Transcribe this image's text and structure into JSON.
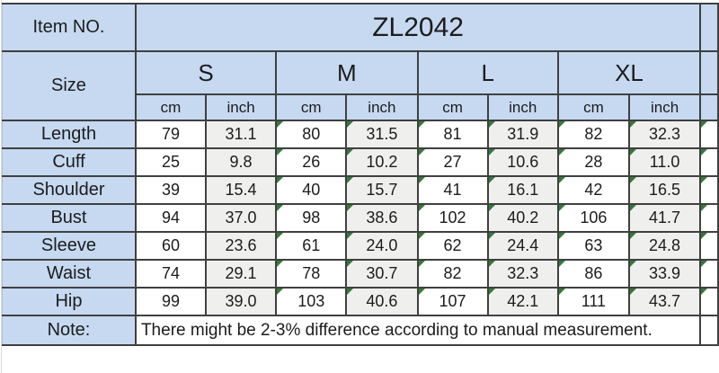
{
  "table": {
    "item_no_label": "Item NO.",
    "item_no_value": "ZL2042",
    "size_label": "Size",
    "sizes": [
      "S",
      "M",
      "L",
      "XL"
    ],
    "unit_cm": "cm",
    "unit_inch": "inch",
    "rows": [
      {
        "label": "Length",
        "values": [
          "79",
          "31.1",
          "80",
          "31.5",
          "81",
          "31.9",
          "82",
          "32.3"
        ]
      },
      {
        "label": "Cuff",
        "values": [
          "25",
          "9.8",
          "26",
          "10.2",
          "27",
          "10.6",
          "28",
          "11.0"
        ]
      },
      {
        "label": "Shoulder",
        "values": [
          "39",
          "15.4",
          "40",
          "15.7",
          "41",
          "16.1",
          "42",
          "16.5"
        ]
      },
      {
        "label": "Bust",
        "values": [
          "94",
          "37.0",
          "98",
          "38.6",
          "102",
          "40.2",
          "106",
          "41.7"
        ]
      },
      {
        "label": "Sleeve",
        "values": [
          "60",
          "23.6",
          "61",
          "24.0",
          "62",
          "24.4",
          "63",
          "24.8"
        ]
      },
      {
        "label": "Waist",
        "values": [
          "74",
          "29.1",
          "78",
          "30.7",
          "82",
          "32.3",
          "86",
          "33.9"
        ]
      },
      {
        "label": "Hip",
        "values": [
          "99",
          "39.0",
          "103",
          "40.6",
          "107",
          "42.1",
          "111",
          "43.7"
        ]
      }
    ],
    "note_label": "Note:",
    "note_text": "There might be 2-3% difference according to manual measurement."
  },
  "colors": {
    "header_blue": "#c6d9f1",
    "inch_column_gray": "#efefee",
    "cm_column_white": "#ffffff",
    "border_dark": "#404040",
    "text": "#1c1c1c",
    "error_indicator_green": "#35793b"
  }
}
